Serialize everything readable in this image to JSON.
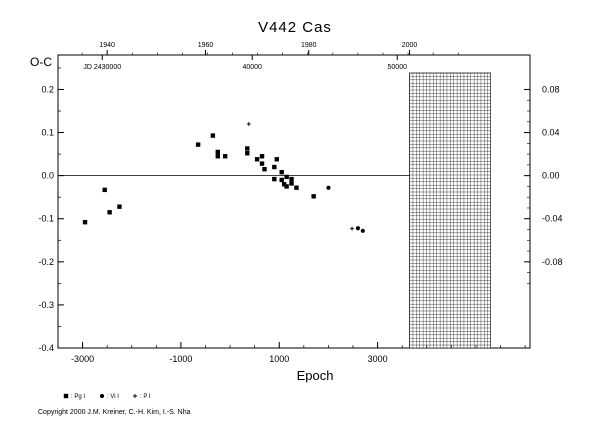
{
  "chart_data": {
    "type": "scatter",
    "title": "V442  Cas",
    "ylabel": "O-C",
    "xlabel": "Epoch",
    "x_range": [
      -3500,
      6100
    ],
    "y_range": [
      -0.4,
      0.28
    ],
    "x_ticks": [
      -3000,
      -1000,
      1000,
      3000
    ],
    "x_tick_labels": [
      "-3000",
      "-1000",
      "1000",
      "3000"
    ],
    "y_ticks_left": [
      -0.4,
      -0.3,
      -0.2,
      -0.1,
      0.0,
      0.1,
      0.2
    ],
    "y_tick_labels_left": [
      "-0.4",
      "-0.3",
      "-0.2",
      "-0.1",
      "0.0",
      "0.1",
      "0.2"
    ],
    "y_ticks_right": [
      -0.08,
      -0.04,
      0.0,
      0.04,
      0.08
    ],
    "y_tick_labels_right": [
      "-0.08",
      "-0.04",
      "0.00",
      "0.04",
      "0.08"
    ],
    "top_year_ticks": [
      {
        "label": "1940",
        "epoch": -2500
      },
      {
        "label": "1960",
        "epoch": -500
      },
      {
        "label": "1980",
        "epoch": 1600
      },
      {
        "label": "2000",
        "epoch": 3650
      }
    ],
    "top_jd_ticks": [
      {
        "label": "JD 2430000",
        "epoch": -2600
      },
      {
        "label": "40000",
        "epoch": 450
      },
      {
        "label": "50000",
        "epoch": 3400
      }
    ],
    "zero_line": 0.0,
    "hatched_region_x": [
      3650,
      5300
    ],
    "series": [
      {
        "name": ": Pg I",
        "marker": "square",
        "points": [
          [
            -2950,
            -0.108
          ],
          [
            -2550,
            -0.033
          ],
          [
            -2450,
            -0.085
          ],
          [
            -2250,
            -0.072
          ],
          [
            -650,
            0.072
          ],
          [
            -350,
            0.093
          ],
          [
            -250,
            0.045
          ],
          [
            -250,
            0.055
          ],
          [
            -100,
            0.045
          ],
          [
            350,
            0.063
          ],
          [
            350,
            0.052
          ],
          [
            550,
            0.038
          ],
          [
            650,
            0.045
          ],
          [
            650,
            0.028
          ],
          [
            700,
            0.015
          ],
          [
            900,
            0.02
          ],
          [
            950,
            0.038
          ],
          [
            900,
            -0.008
          ],
          [
            1050,
            0.008
          ],
          [
            1050,
            -0.01
          ],
          [
            1100,
            -0.02
          ],
          [
            1150,
            -0.003
          ],
          [
            1150,
            -0.025
          ],
          [
            1250,
            -0.008
          ],
          [
            1250,
            -0.018
          ],
          [
            1350,
            -0.028
          ],
          [
            1700,
            -0.048
          ]
        ]
      },
      {
        "name": ": Vi I",
        "marker": "circle",
        "points": [
          [
            2000,
            -0.028
          ],
          [
            2600,
            -0.122
          ],
          [
            2700,
            -0.128
          ]
        ]
      },
      {
        "name": ": P I",
        "marker": "plus",
        "points": [
          [
            380,
            0.12
          ],
          [
            2480,
            -0.123
          ]
        ]
      }
    ]
  },
  "legend": {
    "items": [
      ": Pg I",
      ": Vi I",
      ": P I"
    ]
  },
  "copyright": "Copyright 2000 J.M. Kreiner, C.-H. Kim, I.-S. Nha"
}
